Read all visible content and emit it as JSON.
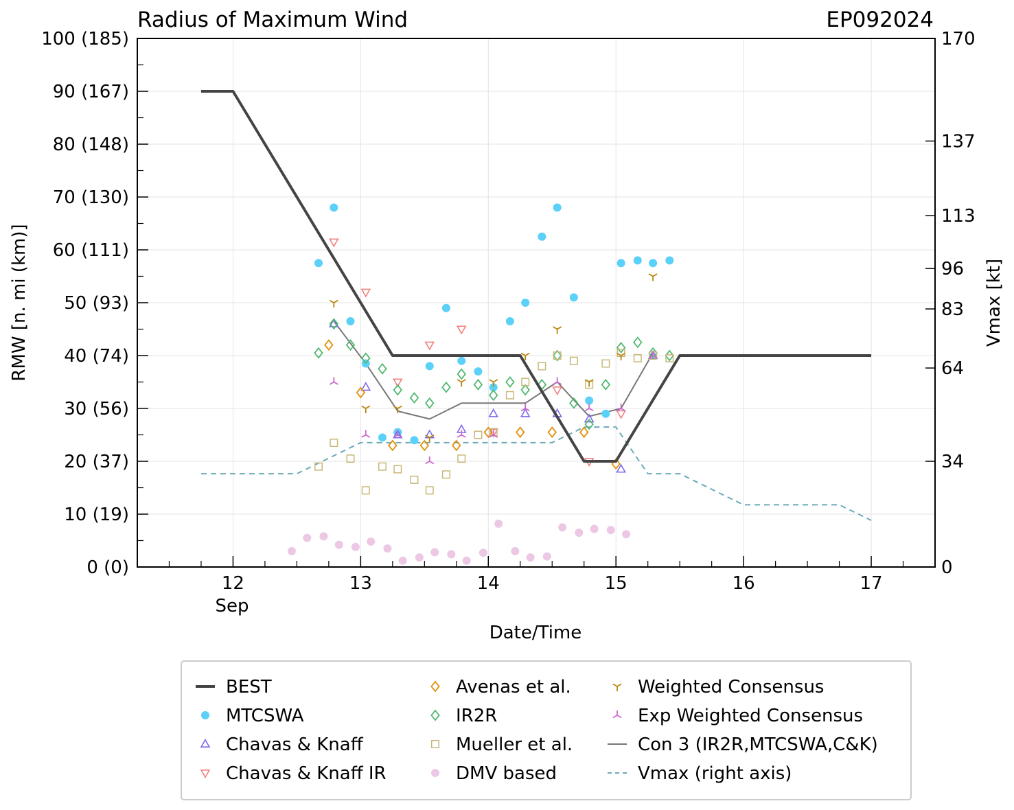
{
  "chart_data": {
    "type": "line",
    "title_left": "Radius of Maximum Wind",
    "title_right": "EP092024",
    "xlabel": "Date/Time",
    "ylabel": "RMW [n. mi (km)]",
    "ylabel_right": "Vmax [kt]",
    "xlim": [
      11.25,
      17.5
    ],
    "ylim": [
      0,
      100
    ],
    "ylim_right": [
      0,
      170
    ],
    "x_ticks": [
      12,
      13,
      14,
      15,
      16,
      17
    ],
    "x_tick_labels": [
      "12",
      "13",
      "14",
      "15",
      "16",
      "17"
    ],
    "x_sublabel": "Sep",
    "y_ticks": [
      0,
      10,
      20,
      30,
      40,
      50,
      60,
      70,
      80,
      90,
      100
    ],
    "y_tick_labels": [
      "0 (0)",
      "10 (19)",
      "20 (37)",
      "30 (56)",
      "40 (74)",
      "50 (93)",
      "60 (111)",
      "70 (130)",
      "80 (148)",
      "90 (167)",
      "100 (185)"
    ],
    "y_right_ticks": [
      0,
      34,
      64,
      83,
      96,
      113,
      137,
      170
    ],
    "y_right_tick_labels": [
      "0",
      "34",
      "64",
      "83",
      "96",
      "113",
      "137",
      "170"
    ],
    "series": [
      {
        "name": "BEST",
        "kind": "line",
        "color": "#444444",
        "points": [
          [
            11.75,
            90
          ],
          [
            12.0,
            90
          ],
          [
            13.25,
            40
          ],
          [
            14.25,
            40
          ],
          [
            14.75,
            20
          ],
          [
            15.0,
            20
          ],
          [
            15.5,
            40
          ],
          [
            17.0,
            40
          ]
        ]
      },
      {
        "name": "MTCSWA",
        "kind": "marker",
        "marker": "circle",
        "color": "#5bd0f8",
        "points": [
          [
            12.67,
            57.5
          ],
          [
            12.79,
            68
          ],
          [
            12.92,
            46.5
          ],
          [
            13.04,
            38.5
          ],
          [
            13.17,
            24.5
          ],
          [
            13.29,
            25.5
          ],
          [
            13.42,
            24
          ],
          [
            13.54,
            38
          ],
          [
            13.67,
            49
          ],
          [
            13.79,
            39
          ],
          [
            13.92,
            37
          ],
          [
            14.04,
            34
          ],
          [
            14.17,
            46.5
          ],
          [
            14.29,
            50
          ],
          [
            14.42,
            62.5
          ],
          [
            14.54,
            68
          ],
          [
            14.67,
            51
          ],
          [
            14.79,
            31.5
          ],
          [
            14.92,
            29
          ],
          [
            15.04,
            57.5
          ],
          [
            15.17,
            58
          ],
          [
            15.29,
            57.5
          ],
          [
            15.42,
            58
          ]
        ]
      },
      {
        "name": "Chavas & Knaff",
        "kind": "marker",
        "marker": "triangle-up",
        "color": "#7b68ee",
        "points": [
          [
            12.79,
            46
          ],
          [
            13.04,
            34
          ],
          [
            13.29,
            25
          ],
          [
            13.54,
            25
          ],
          [
            13.79,
            26
          ],
          [
            14.04,
            29
          ],
          [
            14.29,
            29
          ],
          [
            14.54,
            29
          ],
          [
            14.79,
            28
          ],
          [
            15.04,
            18.5
          ],
          [
            15.29,
            40
          ]
        ]
      },
      {
        "name": "Chavas & Knaff IR",
        "kind": "marker",
        "marker": "triangle-down",
        "color": "#f08080",
        "points": [
          [
            12.79,
            61.5
          ],
          [
            13.04,
            52
          ],
          [
            13.29,
            35
          ],
          [
            13.54,
            42
          ],
          [
            13.79,
            45
          ],
          [
            14.04,
            25.5
          ],
          [
            14.54,
            33.5
          ],
          [
            14.79,
            20
          ],
          [
            15.04,
            29
          ]
        ]
      },
      {
        "name": "Avenas et al.",
        "kind": "marker",
        "marker": "diamond",
        "color": "#e0900a",
        "points": [
          [
            12.75,
            42
          ],
          [
            13.0,
            33
          ],
          [
            13.25,
            23
          ],
          [
            13.5,
            23
          ],
          [
            13.75,
            23
          ],
          [
            14.0,
            25.5
          ],
          [
            14.25,
            25.5
          ],
          [
            14.5,
            25.5
          ],
          [
            14.75,
            25.5
          ],
          [
            15.0,
            19.5
          ]
        ]
      },
      {
        "name": "IR2R",
        "kind": "marker",
        "marker": "diamond",
        "color": "#50b870",
        "points": [
          [
            12.67,
            40.5
          ],
          [
            12.79,
            46
          ],
          [
            12.92,
            42
          ],
          [
            13.04,
            39.5
          ],
          [
            13.17,
            37.5
          ],
          [
            13.29,
            33.5
          ],
          [
            13.42,
            32
          ],
          [
            13.54,
            31
          ],
          [
            13.67,
            34
          ],
          [
            13.79,
            36.5
          ],
          [
            13.92,
            34.5
          ],
          [
            14.04,
            32.5
          ],
          [
            14.17,
            35
          ],
          [
            14.29,
            33.5
          ],
          [
            14.42,
            34.5
          ],
          [
            14.54,
            40
          ],
          [
            14.67,
            31
          ],
          [
            14.79,
            27
          ],
          [
            14.92,
            34.5
          ],
          [
            15.04,
            41.5
          ],
          [
            15.17,
            42.5
          ],
          [
            15.29,
            40.5
          ],
          [
            15.42,
            40
          ]
        ]
      },
      {
        "name": "Mueller et al.",
        "kind": "marker",
        "marker": "square",
        "color": "#c8b878",
        "points": [
          [
            12.67,
            19
          ],
          [
            12.79,
            23.5
          ],
          [
            12.92,
            20.5
          ],
          [
            13.04,
            14.5
          ],
          [
            13.17,
            19
          ],
          [
            13.29,
            18.5
          ],
          [
            13.42,
            16.5
          ],
          [
            13.54,
            14.5
          ],
          [
            13.67,
            17.5
          ],
          [
            13.79,
            20.5
          ],
          [
            13.92,
            25
          ],
          [
            14.04,
            25.5
          ],
          [
            14.17,
            32.5
          ],
          [
            14.29,
            35
          ],
          [
            14.42,
            38
          ],
          [
            14.54,
            40
          ],
          [
            14.67,
            39
          ],
          [
            14.79,
            34.5
          ],
          [
            14.92,
            38.5
          ],
          [
            15.04,
            40.5
          ],
          [
            15.17,
            39.5
          ],
          [
            15.29,
            40
          ],
          [
            15.42,
            39.5
          ]
        ]
      },
      {
        "name": "DMV based",
        "kind": "marker",
        "marker": "circle",
        "color": "#ecc8e4",
        "points": [
          [
            12.46,
            3
          ],
          [
            12.58,
            5.5
          ],
          [
            12.71,
            5.8
          ],
          [
            12.83,
            4.2
          ],
          [
            12.96,
            3.8
          ],
          [
            13.08,
            4.8
          ],
          [
            13.21,
            3.5
          ],
          [
            13.33,
            1.2
          ],
          [
            13.46,
            1.8
          ],
          [
            13.58,
            2.8
          ],
          [
            13.71,
            2.4
          ],
          [
            13.83,
            1.2
          ],
          [
            13.96,
            2.7
          ],
          [
            14.08,
            8.2
          ],
          [
            14.21,
            3
          ],
          [
            14.33,
            1.8
          ],
          [
            14.46,
            2
          ],
          [
            14.58,
            7.5
          ],
          [
            14.71,
            6.5
          ],
          [
            14.83,
            7.2
          ],
          [
            14.96,
            7
          ],
          [
            15.08,
            6.2
          ]
        ]
      },
      {
        "name": "Weighted Consensus",
        "kind": "marker",
        "marker": "tri-down",
        "color": "#b8860b",
        "points": [
          [
            12.79,
            50
          ],
          [
            13.04,
            30
          ],
          [
            13.29,
            30
          ],
          [
            13.54,
            24.5
          ],
          [
            13.79,
            35
          ],
          [
            14.04,
            35
          ],
          [
            14.29,
            40
          ],
          [
            14.54,
            45
          ],
          [
            14.79,
            35
          ],
          [
            15.04,
            40
          ],
          [
            15.29,
            55
          ]
        ]
      },
      {
        "name": "Exp Weighted Consensus",
        "kind": "marker",
        "marker": "tri-up",
        "color": "#cc66cc",
        "points": [
          [
            12.79,
            35
          ],
          [
            13.04,
            25
          ],
          [
            13.29,
            25
          ],
          [
            13.54,
            20
          ],
          [
            13.79,
            25
          ],
          [
            14.04,
            25
          ],
          [
            14.29,
            30
          ],
          [
            14.54,
            35
          ],
          [
            14.79,
            30
          ],
          [
            15.04,
            30
          ],
          [
            15.29,
            40
          ]
        ]
      },
      {
        "name": "Con 3 (IR2R,MTCSWA,C&K)",
        "kind": "line",
        "color": "#777777",
        "points": [
          [
            12.79,
            46.5
          ],
          [
            13.04,
            38.5
          ],
          [
            13.29,
            29.5
          ],
          [
            13.54,
            28
          ],
          [
            13.79,
            31
          ],
          [
            14.04,
            31
          ],
          [
            14.29,
            31
          ],
          [
            14.54,
            35
          ],
          [
            14.79,
            28.5
          ],
          [
            15.04,
            30
          ],
          [
            15.29,
            40.5
          ]
        ]
      },
      {
        "name": "Vmax (right axis)",
        "kind": "dashed",
        "color": "#6aaab8",
        "axis": "right",
        "points": [
          [
            11.75,
            30
          ],
          [
            12.5,
            30
          ],
          [
            13.0,
            40
          ],
          [
            14.5,
            40
          ],
          [
            14.75,
            45
          ],
          [
            15.0,
            45
          ],
          [
            15.25,
            30
          ],
          [
            15.5,
            30
          ],
          [
            16.0,
            20
          ],
          [
            16.75,
            20
          ],
          [
            17.0,
            15
          ]
        ]
      }
    ]
  }
}
